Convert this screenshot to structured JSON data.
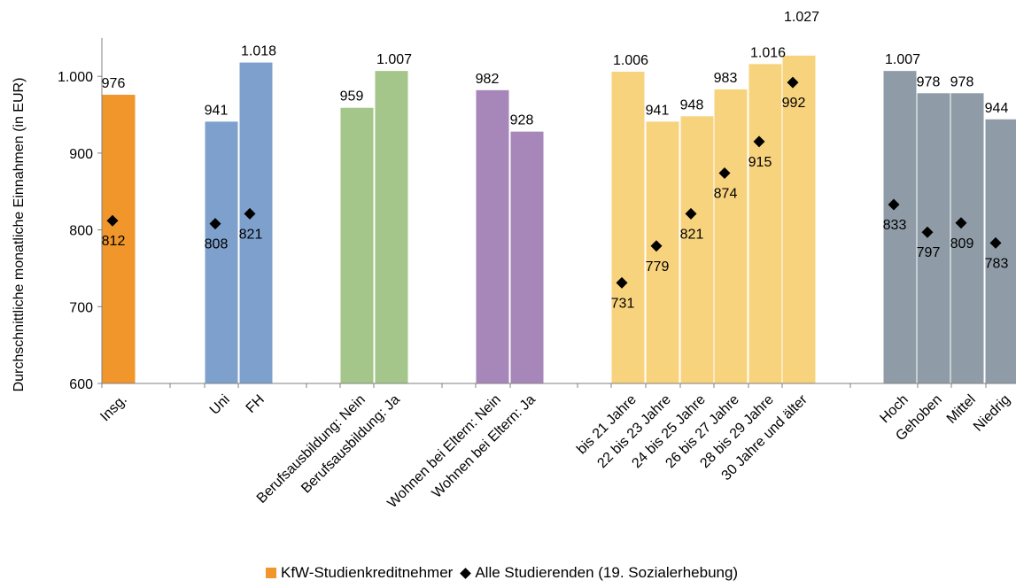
{
  "colors": {
    "kfw": "#F0962B",
    "blue": "#7DA0CC",
    "green": "#A5C68A",
    "purple": "#A786BA",
    "yellow": "#F8D37D",
    "gray": "#8F9CA7"
  },
  "chart_data": {
    "type": "bar",
    "ylabel": "Durchschnittliche monatliche Einnahmen (in EUR)",
    "ylim": [
      600,
      1050
    ],
    "yticks": [
      "600",
      "700",
      "800",
      "900",
      "1.000"
    ],
    "grid": false,
    "legend_position": "bottom",
    "categories": [
      "Insg.",
      "Uni",
      "FH",
      "Berufsausbildung: Nein",
      "Berufsausbildung: Ja",
      "Wohnen bei Eltern: Nein",
      "Wohnen bei Eltern: Ja",
      "bis 21 Jahre",
      "22 bis 23 Jahre",
      "24 bis 25 Jahre",
      "26 bis 27 Jahre",
      "28 bis 29 Jahre",
      "30 Jahre und älter",
      "Hoch",
      "Gehoben",
      "Mittel",
      "Niedrig"
    ],
    "series": [
      {
        "name": "KfW-Studienkreditnehmer",
        "marker": "bar",
        "values": [
          976,
          941,
          1018,
          959,
          1007,
          982,
          928,
          1006,
          941,
          948,
          983,
          1016,
          1027,
          1007,
          978,
          978,
          944
        ],
        "labels": [
          "976",
          "941",
          "1.018",
          "959",
          "1.007",
          "982",
          "928",
          "1.006",
          "941",
          "948",
          "983",
          "1.016",
          "1.027",
          "1.007",
          "978",
          "978",
          "944"
        ],
        "group_colors": [
          "kfw",
          "blue",
          "blue",
          "green",
          "green",
          "purple",
          "purple",
          "yellow",
          "yellow",
          "yellow",
          "yellow",
          "yellow",
          "yellow",
          "gray",
          "gray",
          "gray",
          "gray"
        ]
      },
      {
        "name": "Alle Studierenden (19. Sozialerhebung)",
        "marker": "diamond",
        "values": [
          812,
          808,
          821,
          null,
          null,
          null,
          null,
          731,
          779,
          821,
          874,
          915,
          992,
          833,
          797,
          809,
          783
        ],
        "labels": [
          "812",
          "808",
          "821",
          null,
          null,
          null,
          null,
          "731",
          "779",
          "821",
          "874",
          "915",
          "992",
          "833",
          "797",
          "809",
          "783"
        ]
      }
    ]
  },
  "legend": {
    "kfw_label": "KfW-Studienkreditnehmer",
    "all_label": "Alle Studierenden (19. Sozialerhebung)"
  }
}
